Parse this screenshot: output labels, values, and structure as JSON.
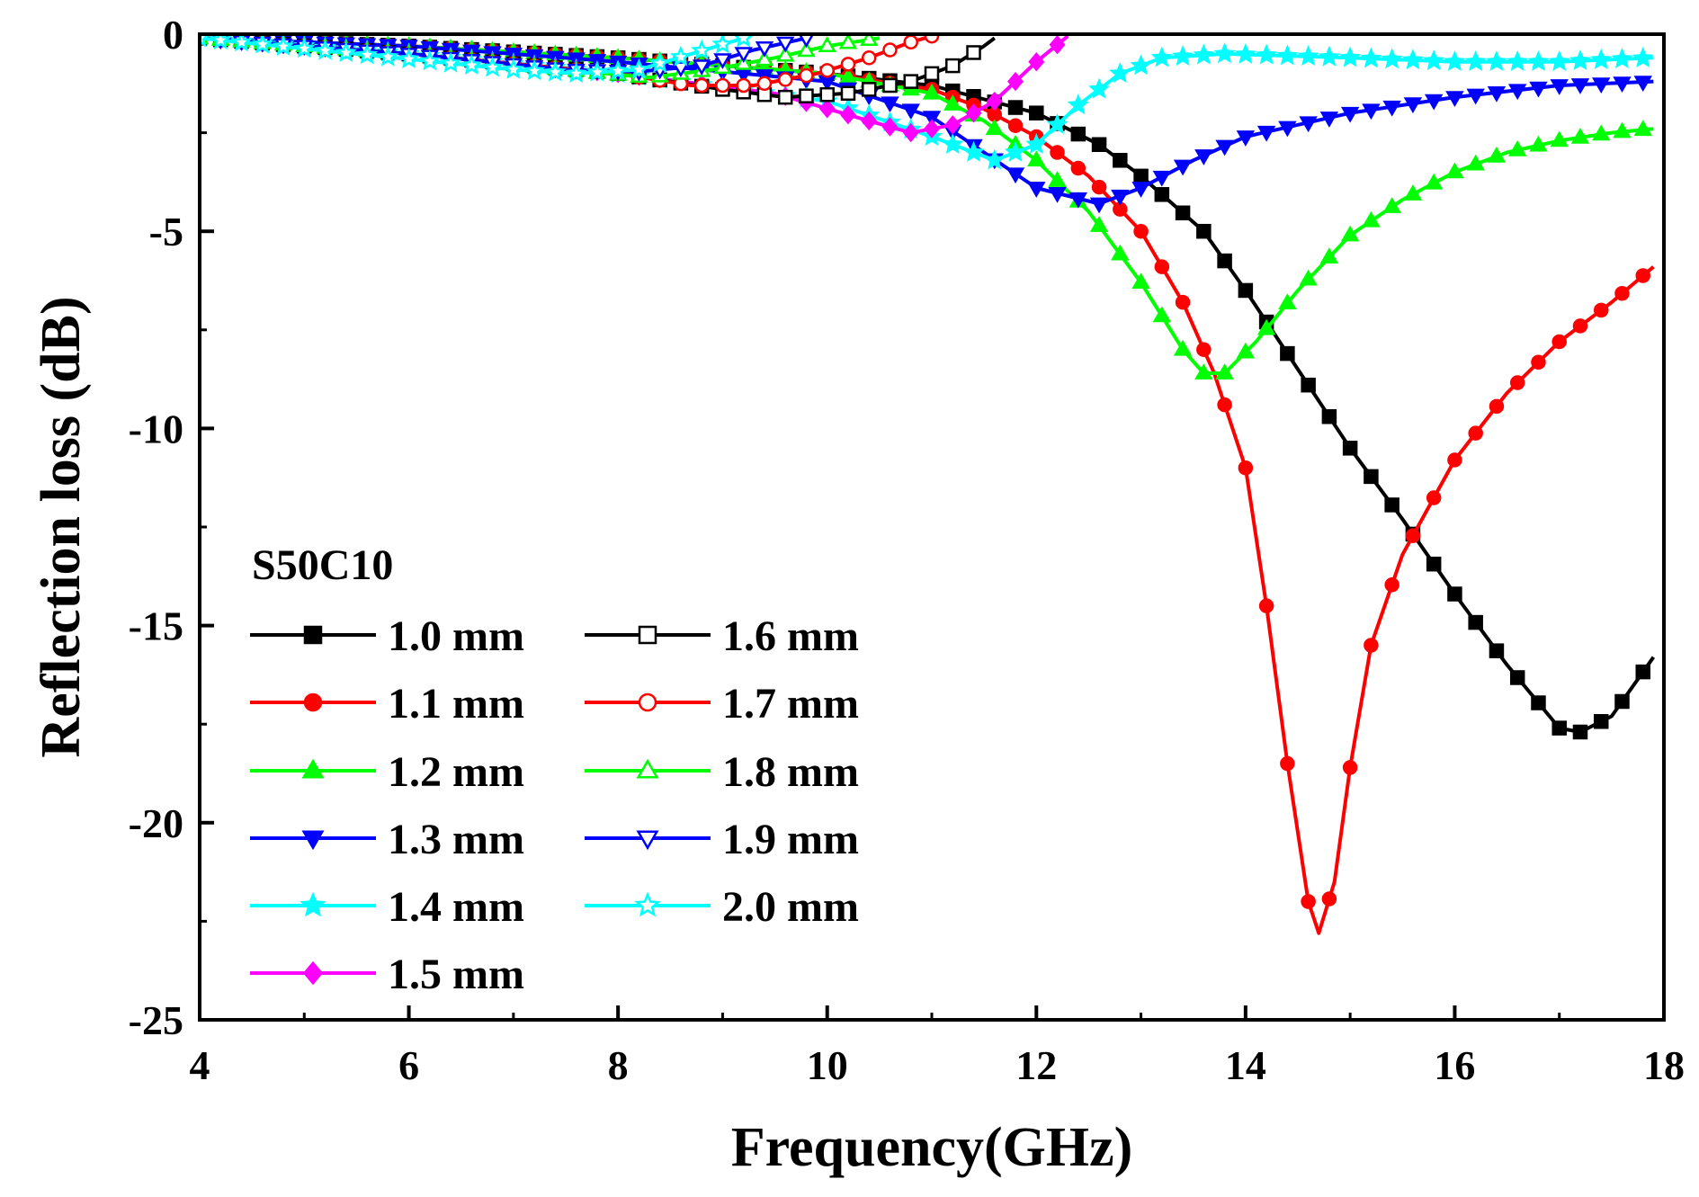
{
  "chart_data": {
    "type": "line",
    "title": "",
    "xlabel": "Frequency(GHz)",
    "ylabel": "Reflection loss (dB)",
    "xlim": [
      4,
      18
    ],
    "ylim": [
      -25,
      0
    ],
    "xticks": [
      "4",
      "6",
      "8",
      "10",
      "12",
      "14",
      "16",
      "18"
    ],
    "yticks": [
      "0",
      "-5",
      "-10",
      "-15",
      "-20",
      "-25"
    ],
    "legend_title": "S50C10",
    "legend_position": "bottom-left",
    "series": [
      {
        "name": "1.0 mm",
        "color": "#000000",
        "marker": "square",
        "filled": true,
        "points": [
          [
            4,
            -0.1
          ],
          [
            6,
            -0.3
          ],
          [
            8,
            -0.6
          ],
          [
            10,
            -1.0
          ],
          [
            11,
            -1.3
          ],
          [
            12,
            -2.0
          ],
          [
            12.6,
            -2.8
          ],
          [
            13,
            -3.6
          ],
          [
            13.6,
            -5.0
          ],
          [
            14,
            -6.5
          ],
          [
            14.5,
            -8.5
          ],
          [
            15,
            -10.5
          ],
          [
            15.5,
            -12.3
          ],
          [
            16,
            -14.2
          ],
          [
            16.5,
            -16.0
          ],
          [
            17,
            -17.6
          ],
          [
            17.2,
            -17.7
          ],
          [
            17.5,
            -17.3
          ],
          [
            17.9,
            -15.8
          ]
        ]
      },
      {
        "name": "1.1 mm",
        "color": "#ff0000",
        "marker": "circle",
        "filled": true,
        "points": [
          [
            4,
            -0.1
          ],
          [
            6,
            -0.3
          ],
          [
            8,
            -0.6
          ],
          [
            10,
            -1.0
          ],
          [
            11,
            -1.4
          ],
          [
            11.5,
            -1.9
          ],
          [
            12,
            -2.6
          ],
          [
            12.5,
            -3.6
          ],
          [
            13,
            -5.0
          ],
          [
            13.4,
            -6.8
          ],
          [
            13.7,
            -8.6
          ],
          [
            14,
            -11.0
          ],
          [
            14.2,
            -14.5
          ],
          [
            14.4,
            -18.5
          ],
          [
            14.6,
            -22.0
          ],
          [
            14.7,
            -22.8
          ],
          [
            14.85,
            -21.5
          ],
          [
            15,
            -18.6
          ],
          [
            15.2,
            -15.5
          ],
          [
            15.5,
            -13.2
          ],
          [
            16,
            -10.8
          ],
          [
            16.5,
            -9.1
          ],
          [
            17,
            -7.8
          ],
          [
            17.5,
            -6.8
          ],
          [
            17.9,
            -5.9
          ]
        ]
      },
      {
        "name": "1.2 mm",
        "color": "#00ff00",
        "marker": "triangle-up",
        "filled": true,
        "points": [
          [
            4,
            -0.1
          ],
          [
            6,
            -0.3
          ],
          [
            8,
            -0.6
          ],
          [
            10,
            -1.0
          ],
          [
            11,
            -1.5
          ],
          [
            11.5,
            -2.2
          ],
          [
            12,
            -3.2
          ],
          [
            12.5,
            -4.5
          ],
          [
            13,
            -6.3
          ],
          [
            13.4,
            -8.0
          ],
          [
            13.6,
            -8.6
          ],
          [
            13.8,
            -8.6
          ],
          [
            14.1,
            -7.8
          ],
          [
            14.5,
            -6.5
          ],
          [
            15,
            -5.1
          ],
          [
            15.5,
            -4.2
          ],
          [
            16,
            -3.5
          ],
          [
            16.5,
            -3.0
          ],
          [
            17,
            -2.7
          ],
          [
            17.5,
            -2.5
          ],
          [
            17.9,
            -2.4
          ]
        ]
      },
      {
        "name": "1.3 mm",
        "color": "#0000ff",
        "marker": "triangle-down",
        "filled": true,
        "points": [
          [
            4,
            -0.1
          ],
          [
            6,
            -0.3
          ],
          [
            8,
            -0.7
          ],
          [
            10,
            -1.2
          ],
          [
            11,
            -2.1
          ],
          [
            11.5,
            -3.0
          ],
          [
            12,
            -3.9
          ],
          [
            12.6,
            -4.3
          ],
          [
            13,
            -3.9
          ],
          [
            13.5,
            -3.2
          ],
          [
            14,
            -2.6
          ],
          [
            15,
            -2.0
          ],
          [
            16,
            -1.6
          ],
          [
            17,
            -1.3
          ],
          [
            17.9,
            -1.2
          ]
        ]
      },
      {
        "name": "1.4 mm",
        "color": "#00ffff",
        "marker": "star",
        "filled": true,
        "points": [
          [
            4,
            -0.1
          ],
          [
            6,
            -0.5
          ],
          [
            8,
            -1.0
          ],
          [
            10,
            -1.7
          ],
          [
            11,
            -2.6
          ],
          [
            11.6,
            -3.2
          ],
          [
            12,
            -2.8
          ],
          [
            12.4,
            -1.8
          ],
          [
            12.8,
            -1.0
          ],
          [
            13.2,
            -0.6
          ],
          [
            13.8,
            -0.5
          ],
          [
            15,
            -0.6
          ],
          [
            16,
            -0.7
          ],
          [
            17,
            -0.7
          ],
          [
            17.9,
            -0.6
          ]
        ]
      },
      {
        "name": "1.5 mm",
        "color": "#ff00ff",
        "marker": "diamond",
        "filled": true,
        "points": [
          [
            4,
            -0.1
          ],
          [
            6,
            -0.5
          ],
          [
            8,
            -1.0
          ],
          [
            9.5,
            -1.5
          ],
          [
            10.4,
            -2.2
          ],
          [
            10.8,
            -2.5
          ],
          [
            11.2,
            -2.3
          ],
          [
            11.6,
            -1.7
          ],
          [
            12,
            -0.7
          ],
          [
            12.3,
            -0.05
          ]
        ]
      },
      {
        "name": "1.6 mm",
        "color": "#000000",
        "marker": "square",
        "filled": false,
        "points": [
          [
            4,
            -0.1
          ],
          [
            6,
            -0.5
          ],
          [
            8,
            -1.0
          ],
          [
            9,
            -1.4
          ],
          [
            9.6,
            -1.6
          ],
          [
            10.2,
            -1.5
          ],
          [
            10.8,
            -1.2
          ],
          [
            11.2,
            -0.8
          ],
          [
            11.5,
            -0.3
          ],
          [
            11.6,
            -0.1
          ]
        ]
      },
      {
        "name": "1.7 mm",
        "color": "#ff0000",
        "marker": "circle",
        "filled": false,
        "points": [
          [
            4,
            -0.1
          ],
          [
            6,
            -0.5
          ],
          [
            8,
            -1.0
          ],
          [
            8.7,
            -1.3
          ],
          [
            9.3,
            -1.3
          ],
          [
            9.9,
            -1.0
          ],
          [
            10.4,
            -0.6
          ],
          [
            10.8,
            -0.2
          ],
          [
            11,
            -0.05
          ]
        ]
      },
      {
        "name": "1.8 mm",
        "color": "#00ff00",
        "marker": "triangle-up",
        "filled": false,
        "points": [
          [
            4,
            -0.1
          ],
          [
            6,
            -0.5
          ],
          [
            7.5,
            -0.9
          ],
          [
            8.3,
            -1.1
          ],
          [
            8.9,
            -0.9
          ],
          [
            9.5,
            -0.6
          ],
          [
            10,
            -0.3
          ],
          [
            10.5,
            -0.1
          ]
        ]
      },
      {
        "name": "1.9 mm",
        "color": "#0000ff",
        "marker": "triangle-down",
        "filled": false,
        "points": [
          [
            4,
            -0.1
          ],
          [
            6,
            -0.5
          ],
          [
            7.5,
            -0.9
          ],
          [
            8.2,
            -0.95
          ],
          [
            8.8,
            -0.8
          ],
          [
            9.3,
            -0.4
          ],
          [
            9.8,
            -0.1
          ]
        ]
      },
      {
        "name": "2.0 mm",
        "color": "#00ffff",
        "marker": "star",
        "filled": false,
        "points": [
          [
            4,
            -0.1
          ],
          [
            5.5,
            -0.5
          ],
          [
            7,
            -0.9
          ],
          [
            7.6,
            -1.0
          ],
          [
            8.2,
            -0.9
          ],
          [
            8.7,
            -0.5
          ],
          [
            9.2,
            -0.1
          ]
        ]
      }
    ]
  }
}
